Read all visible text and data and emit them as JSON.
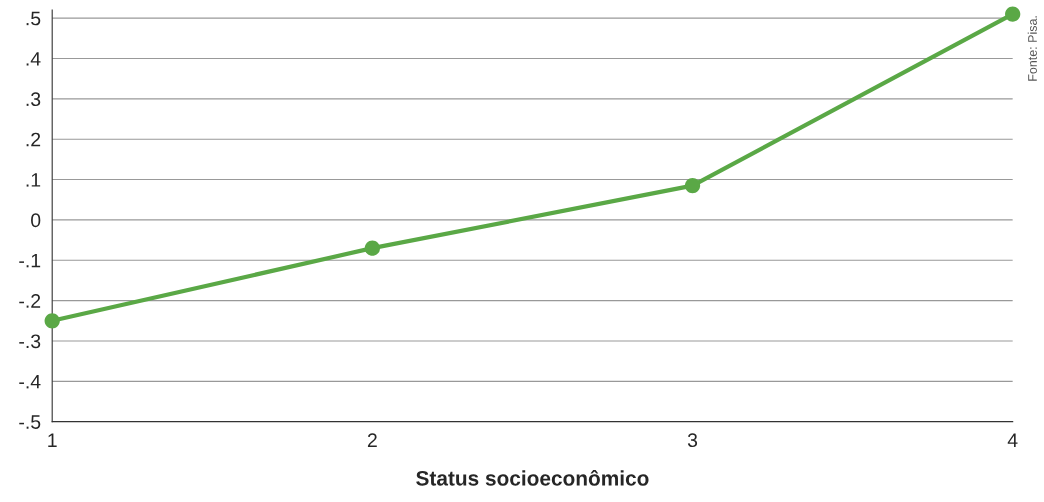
{
  "chart_data": {
    "type": "line",
    "xlabel": "Status socioeconômico",
    "annotations": [
      "Fonte: Pisa."
    ],
    "x": [
      1,
      2,
      3,
      4
    ],
    "series": [
      {
        "color": "#5aa846",
        "values": [
          -0.25,
          -0.07,
          0.085,
          0.51
        ]
      }
    ],
    "xlim": [
      1,
      4
    ],
    "xticks": [
      1,
      2,
      3,
      4
    ],
    "ylim": [
      -0.5,
      0.52
    ],
    "yticks": [
      {
        "value": -0.5,
        "label": "-.5"
      },
      {
        "value": -0.4,
        "label": "-.4"
      },
      {
        "value": -0.3,
        "label": "-.3"
      },
      {
        "value": -0.2,
        "label": "-.2"
      },
      {
        "value": -0.1,
        "label": "-.1"
      },
      {
        "value": 0,
        "label": "0"
      },
      {
        "value": 0.1,
        "label": ".1"
      },
      {
        "value": 0.2,
        "label": ".2"
      },
      {
        "value": 0.3,
        "label": ".3"
      },
      {
        "value": 0.4,
        "label": ".4"
      },
      {
        "value": 0.5,
        "label": ".5"
      }
    ],
    "grid": "y",
    "marker": "circle",
    "line_style": "solid"
  }
}
